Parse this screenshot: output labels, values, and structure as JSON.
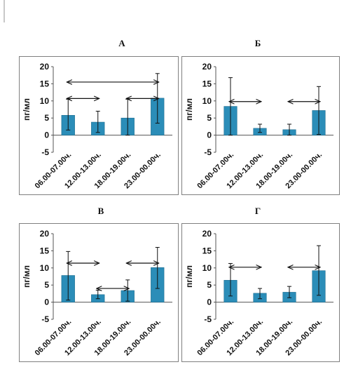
{
  "chart_data": [
    {
      "type": "bar",
      "title": "А",
      "ylabel": "пг/мл",
      "categories": [
        "06.00-07.00ч.",
        "12.00-13.00ч.",
        "18.00-19.00ч.",
        "23.00-00.00ч."
      ],
      "values": [
        5.8,
        3.8,
        5.0,
        10.8
      ],
      "error_low": [
        1.5,
        0.8,
        0.0,
        3.5
      ],
      "error_high": [
        10.5,
        7.0,
        10.5,
        18.0
      ],
      "ylim": [
        -5,
        20
      ],
      "yticks": [
        -5,
        0,
        5,
        10,
        15,
        20
      ],
      "bar_color": "#2b8db8",
      "annotations": [
        {
          "type": "double-arrow",
          "from": 0,
          "to": 3,
          "y": 15.5
        },
        {
          "type": "double-arrow",
          "from": 0,
          "to": 1,
          "y": 10.7
        },
        {
          "type": "double-arrow",
          "from": 2,
          "to": 3,
          "y": 10.7
        }
      ]
    },
    {
      "type": "bar",
      "title": "Б",
      "ylabel": "пг/мл",
      "categories": [
        "06.00-07.00ч.",
        "12.00-13.00ч.",
        "18.00-19.00ч.",
        "23.00-00.00ч."
      ],
      "values": [
        8.4,
        2.0,
        1.6,
        7.2
      ],
      "error_low": [
        0.0,
        0.8,
        0.0,
        0.2
      ],
      "error_high": [
        16.8,
        3.2,
        3.2,
        14.2
      ],
      "ylim": [
        -5,
        20
      ],
      "yticks": [
        -5,
        0,
        5,
        10,
        15,
        20
      ],
      "bar_color": "#2b8db8",
      "annotations": [
        {
          "type": "double-arrow",
          "from": 0,
          "to": 1,
          "y": 9.8
        },
        {
          "type": "double-arrow",
          "from": 2,
          "to": 3,
          "y": 9.8
        }
      ]
    },
    {
      "type": "bar",
      "title": "В",
      "ylabel": "пг/мл",
      "categories": [
        "06.00-07.00ч.",
        "12.00-13.00ч.",
        "18.00-19.00ч.",
        "23.00-00.00ч."
      ],
      "values": [
        7.8,
        2.2,
        3.4,
        10.1
      ],
      "error_low": [
        0.6,
        1.0,
        0.3,
        4.0
      ],
      "error_high": [
        14.8,
        3.5,
        6.5,
        16.0
      ],
      "ylim": [
        -5,
        20
      ],
      "yticks": [
        -5,
        0,
        5,
        10,
        15,
        20
      ],
      "bar_color": "#2b8db8",
      "annotations": [
        {
          "type": "double-arrow",
          "from": 0,
          "to": 1,
          "y": 11.4
        },
        {
          "type": "double-arrow",
          "from": 2,
          "to": 3,
          "y": 11.4
        },
        {
          "type": "double-arrow",
          "from": 1,
          "to": 2,
          "y": 4.0
        }
      ]
    },
    {
      "type": "bar",
      "title": "Г",
      "ylabel": "пг/мл",
      "categories": [
        "06.00-07.00ч.",
        "12.00-13.00ч.",
        "18.00-19.00ч.",
        "23.00-00.00ч."
      ],
      "values": [
        6.4,
        2.6,
        2.9,
        9.2
      ],
      "error_low": [
        1.8,
        1.0,
        1.3,
        2.0
      ],
      "error_high": [
        11.3,
        4.0,
        4.6,
        16.5
      ],
      "ylim": [
        -5,
        20
      ],
      "yticks": [
        -5,
        0,
        5,
        10,
        15,
        20
      ],
      "bar_color": "#2b8db8",
      "annotations": [
        {
          "type": "double-arrow",
          "from": 0,
          "to": 1,
          "y": 10.2
        },
        {
          "type": "double-arrow",
          "from": 2,
          "to": 3,
          "y": 10.2
        }
      ]
    }
  ]
}
